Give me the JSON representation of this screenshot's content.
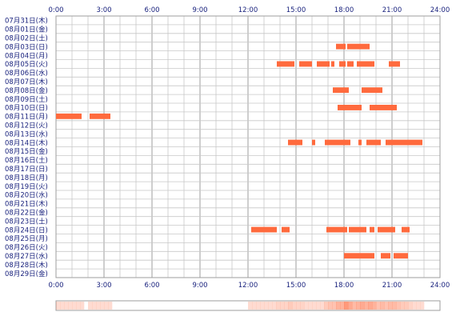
{
  "chart_data": {
    "type": "timeline",
    "x_unit": "hour of day",
    "xlim": [
      0,
      24
    ],
    "x_tick_labels": [
      "0:00",
      "3:00",
      "6:00",
      "9:00",
      "12:00",
      "15:00",
      "18:00",
      "21:00",
      "24:00"
    ],
    "grid": true,
    "colors": {
      "grid_major": "#9e9e9e",
      "grid_minor": "#c8c8c8",
      "activity": "#ff6a3d",
      "summary_light": "#fde3d8",
      "label_text": "#1a237e"
    },
    "rows": [
      {
        "label": "07月31日(木)",
        "intervals": []
      },
      {
        "label": "08月01日(金)",
        "intervals": []
      },
      {
        "label": "08月02日(土)",
        "intervals": []
      },
      {
        "label": "08月03日(日)",
        "intervals": [
          [
            17.5,
            18.1
          ],
          [
            18.2,
            19.6
          ]
        ]
      },
      {
        "label": "08月04日(月)",
        "intervals": []
      },
      {
        "label": "08月05日(火)",
        "intervals": [
          [
            13.8,
            14.9
          ],
          [
            15.2,
            16.0
          ],
          [
            16.3,
            17.1
          ],
          [
            17.2,
            17.4
          ],
          [
            17.7,
            18.1
          ],
          [
            18.2,
            18.6
          ],
          [
            18.8,
            19.9
          ],
          [
            20.8,
            21.5
          ]
        ]
      },
      {
        "label": "08月06日(水)",
        "intervals": []
      },
      {
        "label": "08月07日(木)",
        "intervals": []
      },
      {
        "label": "08月08日(金)",
        "intervals": [
          [
            17.3,
            18.3
          ],
          [
            19.1,
            20.4
          ]
        ]
      },
      {
        "label": "08月09日(土)",
        "intervals": []
      },
      {
        "label": "08月10日(日)",
        "intervals": [
          [
            17.6,
            19.1
          ],
          [
            19.6,
            21.3
          ]
        ]
      },
      {
        "label": "08月11日(月)",
        "intervals": [
          [
            0.0,
            1.6
          ],
          [
            2.1,
            3.4
          ]
        ]
      },
      {
        "label": "08月12日(火)",
        "intervals": []
      },
      {
        "label": "08月13日(水)",
        "intervals": []
      },
      {
        "label": "08月14日(木)",
        "intervals": [
          [
            14.5,
            15.4
          ],
          [
            16.0,
            16.2
          ],
          [
            16.8,
            18.4
          ],
          [
            18.9,
            19.1
          ],
          [
            19.4,
            20.3
          ],
          [
            20.6,
            22.9
          ]
        ]
      },
      {
        "label": "08月15日(金)",
        "intervals": []
      },
      {
        "label": "08月16日(土)",
        "intervals": []
      },
      {
        "label": "08月17日(日)",
        "intervals": []
      },
      {
        "label": "08月18日(月)",
        "intervals": []
      },
      {
        "label": "08月19日(火)",
        "intervals": []
      },
      {
        "label": "08月20日(水)",
        "intervals": []
      },
      {
        "label": "08月21日(木)",
        "intervals": []
      },
      {
        "label": "08月22日(金)",
        "intervals": []
      },
      {
        "label": "08月23日(土)",
        "intervals": []
      },
      {
        "label": "08月24日(日)",
        "intervals": [
          [
            12.2,
            13.8
          ],
          [
            14.1,
            14.6
          ],
          [
            16.9,
            18.2
          ],
          [
            18.3,
            19.4
          ],
          [
            19.6,
            19.9
          ],
          [
            20.1,
            21.2
          ],
          [
            21.6,
            22.1
          ]
        ]
      },
      {
        "label": "08月25日(月)",
        "intervals": []
      },
      {
        "label": "08月26日(火)",
        "intervals": []
      },
      {
        "label": "08月27日(水)",
        "intervals": [
          [
            18.0,
            19.9
          ],
          [
            20.3,
            20.9
          ],
          [
            21.1,
            22.0
          ]
        ]
      },
      {
        "label": "08月28日(木)",
        "intervals": []
      },
      {
        "label": "08月29日(金)",
        "intervals": []
      }
    ]
  }
}
